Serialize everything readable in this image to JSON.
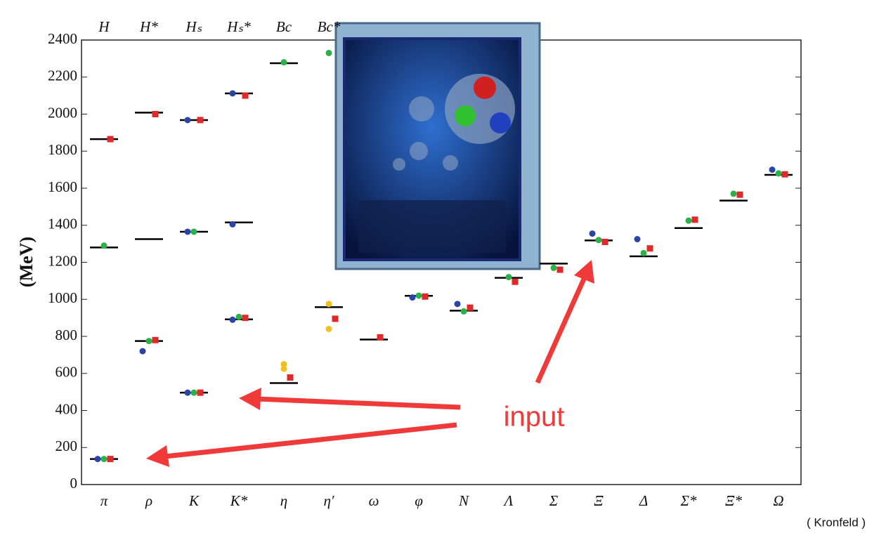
{
  "chart_data": {
    "type": "spectrum",
    "categories": [
      "π",
      "ρ",
      "K",
      "K*",
      "η",
      "η′",
      "ω",
      "φ",
      "N",
      "Λ",
      "Σ",
      "Ξ",
      "Δ",
      "Σ*",
      "Ξ*",
      "Ω"
    ],
    "top_categories": [
      "H",
      "H*",
      "Hₛ",
      "Hₛ*",
      "Bc",
      "Bc*"
    ],
    "y_label": "(MeV)",
    "ylim": [
      0,
      2400
    ],
    "yticks": [
      0,
      200,
      400,
      600,
      800,
      1000,
      1200,
      1400,
      1600,
      1800,
      2000,
      2200,
      2400
    ],
    "annotation": "input",
    "credit": "( Kronfeld )",
    "series": [
      {
        "color": "#000000",
        "marker": "line",
        "values": [
          138,
          775,
          496,
          892,
          548,
          958,
          783,
          1019,
          939,
          1116,
          1193,
          1318,
          1232,
          1385,
          1533,
          1672
        ]
      },
      {
        "color": "#000000",
        "marker": "line",
        "values": [
          1280,
          1325,
          1365,
          1415,
          null,
          null,
          null,
          null,
          null,
          null,
          null,
          null,
          null,
          null,
          null,
          null
        ]
      },
      {
        "color": "#000000",
        "marker": "line",
        "values": [
          1865,
          2008,
          1968,
          2112,
          2275,
          null,
          null,
          null,
          null,
          null,
          null,
          null,
          null,
          null,
          null,
          null
        ]
      },
      {
        "color": "#2a45a8",
        "marker": "circle",
        "values": [
          138,
          720,
          496,
          890,
          null,
          null,
          null,
          1010,
          975,
          null,
          null,
          1355,
          1325,
          null,
          null,
          1700
        ]
      },
      {
        "color": "#2bb04a",
        "marker": "circle",
        "values": [
          138,
          775,
          496,
          905,
          null,
          null,
          null,
          1020,
          935,
          1120,
          1170,
          1320,
          1250,
          1425,
          1570,
          1680
        ]
      },
      {
        "color": "#e02a2a",
        "marker": "square",
        "values": [
          138,
          780,
          496,
          900,
          578,
          895,
          795,
          1015,
          955,
          1095,
          1160,
          1310,
          1275,
          1430,
          1565,
          1675
        ]
      },
      {
        "color": "#f0c020",
        "marker": "circle",
        "values": [
          null,
          null,
          null,
          null,
          650,
          975,
          null,
          null,
          null,
          null,
          null,
          null,
          null,
          null,
          null,
          null
        ]
      },
      {
        "color": "#f0c020",
        "marker": "circle",
        "values": [
          null,
          null,
          null,
          null,
          625,
          840,
          null,
          null,
          null,
          null,
          null,
          null,
          null,
          null,
          null,
          null
        ]
      },
      {
        "color": "#2a45a8",
        "marker": "circle",
        "values": [
          null,
          null,
          1968,
          2112,
          null,
          null,
          null,
          null,
          null,
          null,
          null,
          null,
          null,
          null,
          null,
          null
        ]
      },
      {
        "color": "#2a45a8",
        "marker": "circle",
        "values": [
          null,
          null,
          1365,
          1405,
          null,
          null,
          null,
          null,
          null,
          null,
          null,
          null,
          null,
          null,
          null,
          null
        ]
      },
      {
        "color": "#2bb04a",
        "marker": "circle",
        "values": [
          1290,
          null,
          1365,
          null,
          2280,
          2330,
          null,
          null,
          null,
          null,
          null,
          null,
          null,
          null,
          null,
          null
        ]
      },
      {
        "color": "#e02a2a",
        "marker": "square",
        "values": [
          1865,
          2000,
          1968,
          2100,
          null,
          null,
          null,
          null,
          null,
          null,
          null,
          null,
          null,
          null,
          null,
          null
        ]
      }
    ]
  }
}
